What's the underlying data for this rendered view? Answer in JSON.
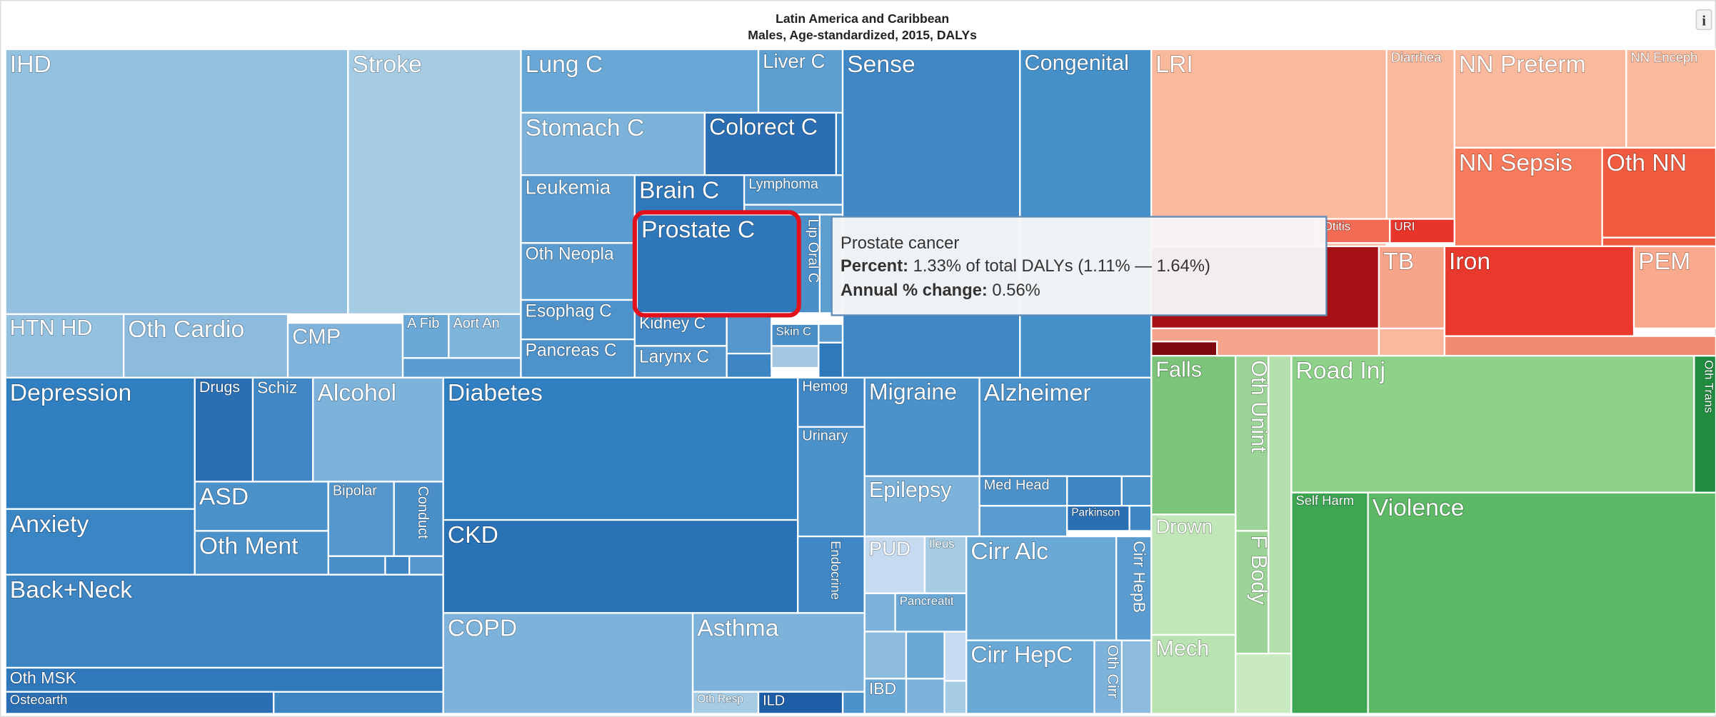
{
  "header": {
    "title": "Latin America and Caribbean",
    "subtitle": "Males, Age-standardized, 2015, DALYs",
    "info": "i"
  },
  "cells": [
    "IHD",
    "Stroke",
    "HTN HD",
    "Oth Cardio",
    "CMP",
    "A Fib",
    "Aort An",
    "Lung C",
    "Liver C",
    "Stomach C",
    "Colorect C",
    "Leukemia",
    "Brain C",
    "Lymphoma",
    "Prostate C",
    "Lip Oral C",
    "Oth Neopla",
    "Esophag C",
    "Kidney C",
    "Pancreas C",
    "Larynx C",
    "Skin C",
    "Sense",
    "Congenital",
    "LRI",
    "Diarrhea",
    "NN Preterm",
    "NN Enceph",
    "NN Sepsis",
    "Oth NN",
    "Otitis",
    "URI",
    "TB",
    "Iron",
    "PEM",
    "Falls",
    "Oth Unint",
    "F Body",
    "Drown",
    "Mech",
    "Road Inj",
    "Oth Trans",
    "Self Harm",
    "Violence",
    "Depression",
    "Anxiety",
    "Drugs",
    "Schiz",
    "Alcohol",
    "ASD",
    "Bipolar",
    "Conduct",
    "Oth Ment",
    "Back+Neck",
    "Oth MSK",
    "Osteoarth",
    "Diabetes",
    "Hemog",
    "Urinary",
    "CKD",
    "Endocrine",
    "COPD",
    "Asthma",
    "Oth Resp",
    "ILD",
    "Migraine",
    "Alzheimer",
    "Epilepsy",
    "Med Head",
    "Parkinson",
    "PUD",
    "Ileus",
    "Pancreatit",
    "IBD",
    "Cirr Alc",
    "Cirr HepB",
    "Cirr HepC",
    "Oth Cirr"
  ],
  "tooltip": {
    "name": "Prostate cancer",
    "percent_label": "Percent:",
    "percent": "1.33% of total DALYs (1.11% — 1.64%)",
    "change_label": "Annual % change:",
    "change": "0.56%"
  }
}
